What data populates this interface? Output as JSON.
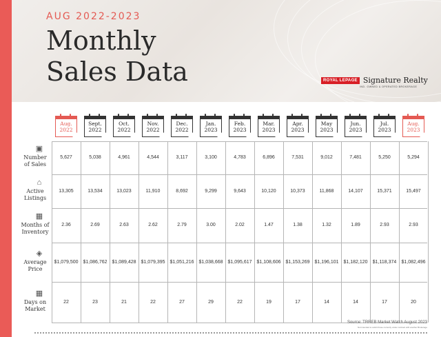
{
  "header": {
    "subtitle": "AUG 2022-2023",
    "title_line1": "Monthly",
    "title_line2": "Sales Data",
    "brand_box": "ROYAL LEPAGE",
    "brand_name": "Signature Realty",
    "brand_tag": "IND. OWNED & OPERATED BROKERAGE"
  },
  "months": [
    {
      "m": "Aug.",
      "y": "2022",
      "highlight": true
    },
    {
      "m": "Sept.",
      "y": "2022",
      "highlight": false
    },
    {
      "m": "Oct.",
      "y": "2022",
      "highlight": false
    },
    {
      "m": "Nov.",
      "y": "2022",
      "highlight": false
    },
    {
      "m": "Dec.",
      "y": "2022",
      "highlight": false
    },
    {
      "m": "Jan.",
      "y": "2023",
      "highlight": false
    },
    {
      "m": "Feb.",
      "y": "2023",
      "highlight": false
    },
    {
      "m": "Mar.",
      "y": "2023",
      "highlight": false
    },
    {
      "m": "Apr.",
      "y": "2023",
      "highlight": false
    },
    {
      "m": "May",
      "y": "2023",
      "highlight": false
    },
    {
      "m": "Jun.",
      "y": "2023",
      "highlight": false
    },
    {
      "m": "Jul.",
      "y": "2023",
      "highlight": false
    },
    {
      "m": "Aug.",
      "y": "2023",
      "highlight": true
    }
  ],
  "rows": [
    {
      "label1": "Number",
      "label2": "of Sales",
      "icon": "house-icon",
      "values": [
        "5,627",
        "5,038",
        "4,961",
        "4,544",
        "3,117",
        "3,100",
        "4,783",
        "6,896",
        "7,531",
        "9,012",
        "7,481",
        "5,250",
        "5,294"
      ]
    },
    {
      "label1": "Active",
      "label2": "Listings",
      "icon": "home-icon",
      "values": [
        "13,305",
        "13,534",
        "13,023",
        "11,910",
        "8,692",
        "9,299",
        "9,643",
        "10,120",
        "10,373",
        "11,868",
        "14,107",
        "15,371",
        "15,497"
      ]
    },
    {
      "label1": "Months of",
      "label2": "Inventory",
      "icon": "calendar-icon",
      "values": [
        "2.36",
        "2.69",
        "2.63",
        "2.62",
        "2.79",
        "3.00",
        "2.02",
        "1.47",
        "1.38",
        "1.32",
        "1.89",
        "2.93",
        "2.93"
      ]
    },
    {
      "label1": "Average",
      "label2": "Price",
      "icon": "tag-icon",
      "values": [
        "$1,079,500",
        "$1,086,762",
        "$1,089,428",
        "$1,079,395",
        "$1,051,216",
        "$1,038,668",
        "$1,095,617",
        "$1,108,606",
        "$1,153,269",
        "$1,196,101",
        "$1,182,120",
        "$1,118,374",
        "$1,082,496"
      ]
    },
    {
      "label1": "Days on",
      "label2": "Market",
      "icon": "calendar-grid-icon",
      "values": [
        "22",
        "23",
        "21",
        "22",
        "27",
        "29",
        "22",
        "19",
        "17",
        "14",
        "14",
        "17",
        "20"
      ]
    }
  ],
  "source": "Source: TRREB Market Watch August 2023",
  "source_note": "Not intended to solicit those currently under contract with another Brokerage",
  "colors": {
    "accent": "#e45a53",
    "text": "#2a2a2a",
    "grid": "#b5b5b5"
  }
}
